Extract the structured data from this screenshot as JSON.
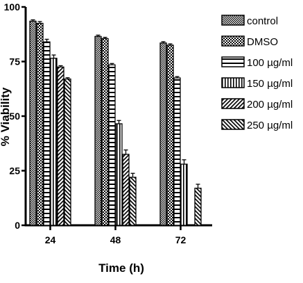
{
  "chart_data": {
    "type": "bar",
    "title": "",
    "xlabel": "Time (h)",
    "ylabel": "% Viability",
    "ylim": [
      0,
      100
    ],
    "yticks": [
      "0",
      "25",
      "50",
      "75",
      "100"
    ],
    "categories": [
      "24",
      "48",
      "72"
    ],
    "legend_position": "right",
    "grid": false,
    "series": [
      {
        "name": "control",
        "pattern": "checker",
        "values": [
          93.5,
          86.5,
          83.5
        ],
        "errors": [
          0.6,
          0.6,
          0.6
        ]
      },
      {
        "name": "DMSO",
        "pattern": "dots",
        "values": [
          92.5,
          85.5,
          82.5
        ],
        "errors": [
          0.8,
          0.6,
          0.6
        ]
      },
      {
        "name": "100 µg/ml",
        "pattern": "hlines",
        "values": [
          84.0,
          73.5,
          67.5
        ],
        "errors": [
          1.2,
          0.6,
          0.6
        ]
      },
      {
        "name": "150 µg/ml",
        "pattern": "vlines",
        "values": [
          76.5,
          46.5,
          28.0
        ],
        "errors": [
          1.5,
          1.5,
          2.0
        ]
      },
      {
        "name": "200 µg/ml",
        "pattern": "diag-right",
        "values": [
          72.5,
          32.5,
          0
        ],
        "errors": [
          0.6,
          2.0,
          0
        ]
      },
      {
        "name": "250 µg/ml",
        "pattern": "diag-left",
        "values": [
          67.0,
          22.0,
          17.0
        ],
        "errors": [
          0.6,
          1.8,
          1.8
        ]
      }
    ]
  }
}
